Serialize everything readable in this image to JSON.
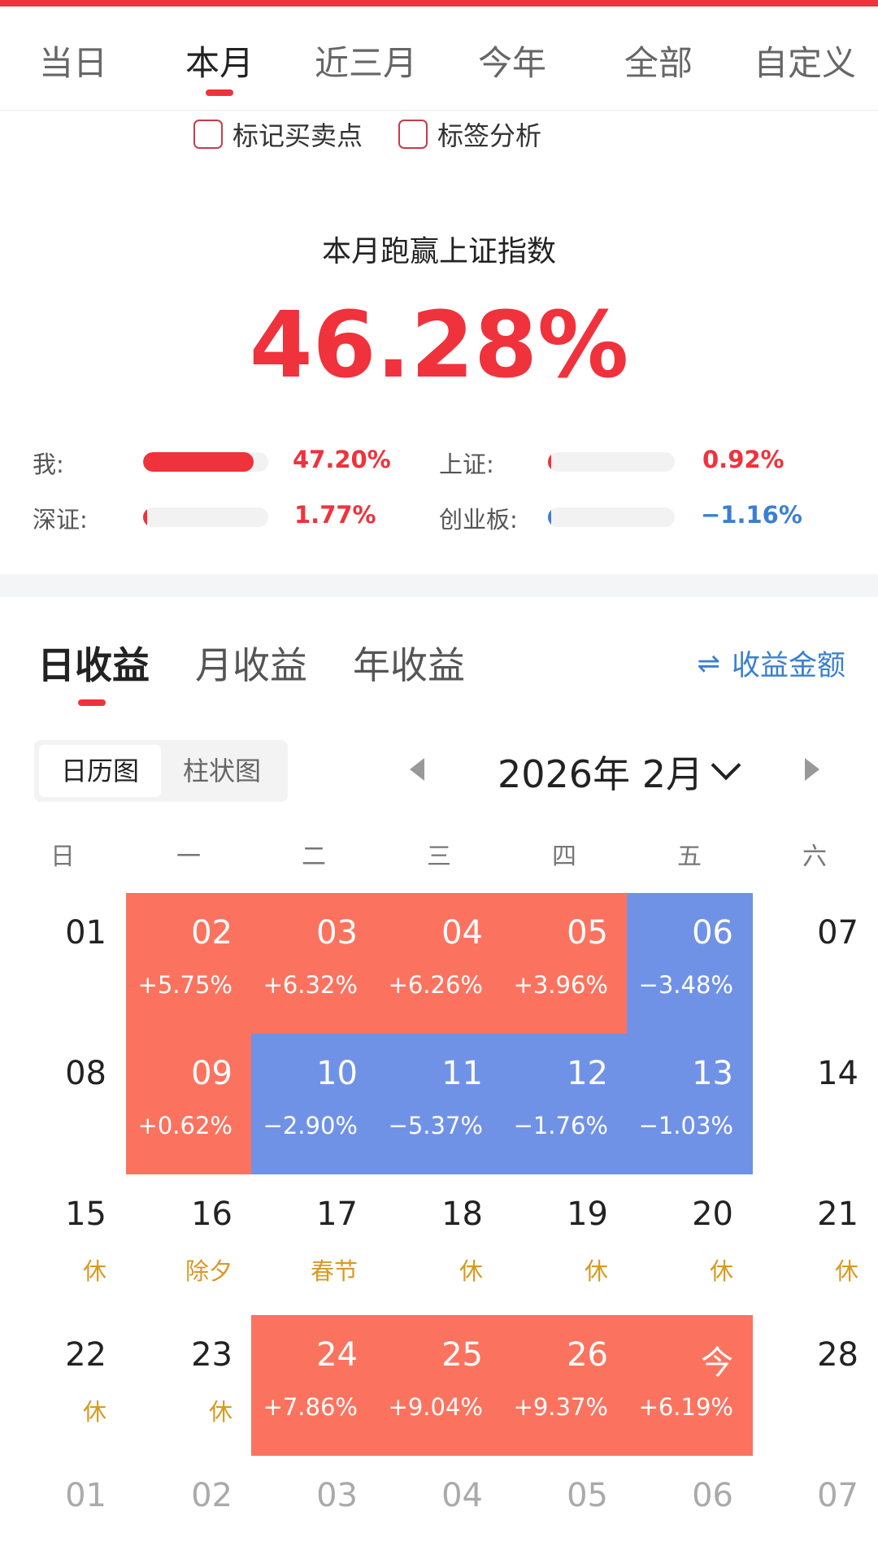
{
  "period_tabs": [
    "当日",
    "本月",
    "近三月",
    "今年",
    "全部",
    "自定义"
  ],
  "active_period": "本月",
  "checkboxes": [
    "标记买卖点",
    "标签分析"
  ],
  "headline": "本月跑赢上证指数",
  "outperform_pct": "46.28%",
  "comparisons": [
    {
      "label": "我:",
      "value": "47.20%",
      "fraction": 0.88,
      "color": "#f0323c"
    },
    {
      "label": "上证:",
      "value": "0.92%",
      "fraction": 0.02,
      "color": "#f0323c"
    },
    {
      "label": "深证:",
      "value": "1.77%",
      "fraction": 0.03,
      "color": "#f0323c"
    },
    {
      "label": "创业板:",
      "value": "−1.16%",
      "fraction": 0.02,
      "color": "#3b7fd1"
    }
  ],
  "gain_tabs": [
    "日收益",
    "月收益",
    "年收益"
  ],
  "amount_toggle": "收益金额",
  "view_switch": [
    "日历图",
    "柱状图"
  ],
  "month_label": "2026年 2月",
  "weekdays": [
    "日",
    "一",
    "二",
    "三",
    "四",
    "五",
    "六"
  ],
  "calendar": [
    [
      {
        "d": "01"
      },
      {
        "d": "02",
        "p": "+5.75%",
        "t": "up"
      },
      {
        "d": "03",
        "p": "+6.32%",
        "t": "up"
      },
      {
        "d": "04",
        "p": "+6.26%",
        "t": "up"
      },
      {
        "d": "05",
        "p": "+3.96%",
        "t": "up"
      },
      {
        "d": "06",
        "p": "−3.48%",
        "t": "down"
      },
      {
        "d": "07"
      }
    ],
    [
      {
        "d": "08"
      },
      {
        "d": "09",
        "p": "+0.62%",
        "t": "up"
      },
      {
        "d": "10",
        "p": "−2.90%",
        "t": "down"
      },
      {
        "d": "11",
        "p": "−5.37%",
        "t": "down"
      },
      {
        "d": "12",
        "p": "−1.76%",
        "t": "down"
      },
      {
        "d": "13",
        "p": "−1.03%",
        "t": "down"
      },
      {
        "d": "14"
      }
    ],
    [
      {
        "d": "15",
        "h": "休"
      },
      {
        "d": "16",
        "h": "除夕"
      },
      {
        "d": "17",
        "h": "春节"
      },
      {
        "d": "18",
        "h": "休"
      },
      {
        "d": "19",
        "h": "休"
      },
      {
        "d": "20",
        "h": "休"
      },
      {
        "d": "21",
        "h": "休"
      }
    ],
    [
      {
        "d": "22",
        "h": "休"
      },
      {
        "d": "23",
        "h": "休"
      },
      {
        "d": "24",
        "p": "+7.86%",
        "t": "up"
      },
      {
        "d": "25",
        "p": "+9.04%",
        "t": "up"
      },
      {
        "d": "26",
        "p": "+9.37%",
        "t": "up"
      },
      {
        "d": "今",
        "p": "+6.19%",
        "t": "up"
      },
      {
        "d": "28"
      }
    ],
    [
      {
        "d": "01",
        "n": true
      },
      {
        "d": "02",
        "n": true
      },
      {
        "d": "03",
        "n": true
      },
      {
        "d": "04",
        "n": true
      },
      {
        "d": "05",
        "n": true
      },
      {
        "d": "06",
        "n": true
      },
      {
        "d": "07",
        "n": true
      }
    ]
  ]
}
